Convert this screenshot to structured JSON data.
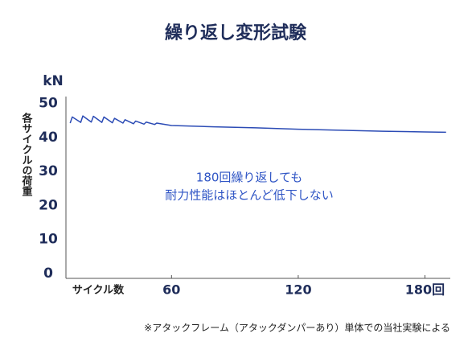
{
  "chart_data": {
    "type": "line",
    "title": "繰り返し変形試験",
    "y_unit": "kN",
    "ylabel": "各サイクルの荷重",
    "xlabel": "サイクル数",
    "annotation": [
      "180回繰り返しても",
      "耐力性能はほとんど低下しない"
    ],
    "footnote": "※アタックフレーム（アタックダンパーあり）単体での当社実験による",
    "x": [
      12,
      13,
      17,
      18,
      22,
      23,
      27,
      28,
      32,
      33,
      37,
      38,
      42,
      43,
      47,
      48,
      52,
      53,
      60,
      80,
      100,
      120,
      140,
      160,
      180,
      190
    ],
    "series": [
      {
        "color": "#2b4bb5",
        "values": [
          44.2,
          46.0,
          44.4,
          46.3,
          44.5,
          46.2,
          44.4,
          46.0,
          44.3,
          45.6,
          44.2,
          45.2,
          44.0,
          44.8,
          43.9,
          44.5,
          43.8,
          44.2,
          43.5,
          43.1,
          42.8,
          42.4,
          42.1,
          41.8,
          41.6,
          41.5
        ]
      }
    ],
    "xlim": [
      10,
      192
    ],
    "xticks": [
      60,
      120,
      {
        "value": 180,
        "label": "180回"
      }
    ],
    "ylim": [
      0,
      52
    ],
    "yticks": [
      0,
      10,
      20,
      30,
      40,
      50
    ],
    "grid": false
  }
}
